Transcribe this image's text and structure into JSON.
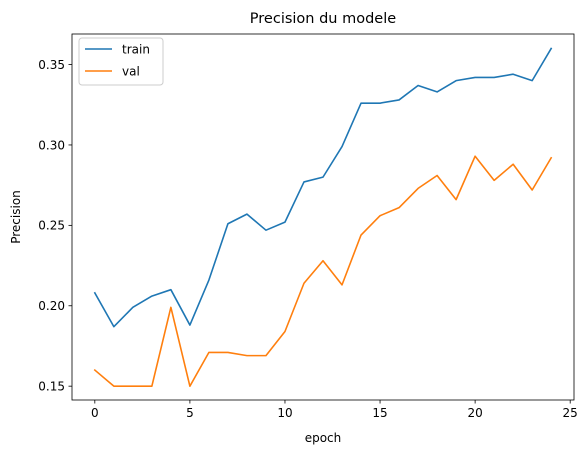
{
  "chart_data": {
    "type": "line",
    "title": "Precision du modele",
    "xlabel": "epoch",
    "ylabel": "Precision",
    "xlim": [
      -1.2,
      25.2
    ],
    "ylim": [
      0.1414,
      0.369
    ],
    "xticks": [
      0,
      5,
      10,
      15,
      20,
      25
    ],
    "xtick_labels": [
      "0",
      "5",
      "10",
      "15",
      "20",
      "25"
    ],
    "yticks": [
      0.15,
      0.2,
      0.25,
      0.3,
      0.35
    ],
    "ytick_labels": [
      "0.15",
      "0.20",
      "0.25",
      "0.30",
      "0.35"
    ],
    "grid": false,
    "legend_position": "top-left",
    "x": [
      0,
      1,
      2,
      3,
      4,
      5,
      6,
      7,
      8,
      9,
      10,
      11,
      12,
      13,
      14,
      15,
      16,
      17,
      18,
      19,
      20,
      21,
      22,
      23,
      24
    ],
    "series": [
      {
        "name": "train",
        "color": "#1f77b4",
        "values": [
          0.208,
          0.187,
          0.199,
          0.206,
          0.21,
          0.188,
          0.216,
          0.251,
          0.257,
          0.247,
          0.252,
          0.277,
          0.28,
          0.299,
          0.326,
          0.326,
          0.328,
          0.337,
          0.333,
          0.34,
          0.342,
          0.342,
          0.344,
          0.34,
          0.36
        ]
      },
      {
        "name": "val",
        "color": "#ff7f0e",
        "values": [
          0.16,
          0.15,
          0.15,
          0.15,
          0.199,
          0.15,
          0.171,
          0.171,
          0.169,
          0.169,
          0.184,
          0.214,
          0.228,
          0.213,
          0.244,
          0.256,
          0.261,
          0.273,
          0.281,
          0.266,
          0.293,
          0.278,
          0.288,
          0.272,
          0.292
        ]
      }
    ]
  }
}
